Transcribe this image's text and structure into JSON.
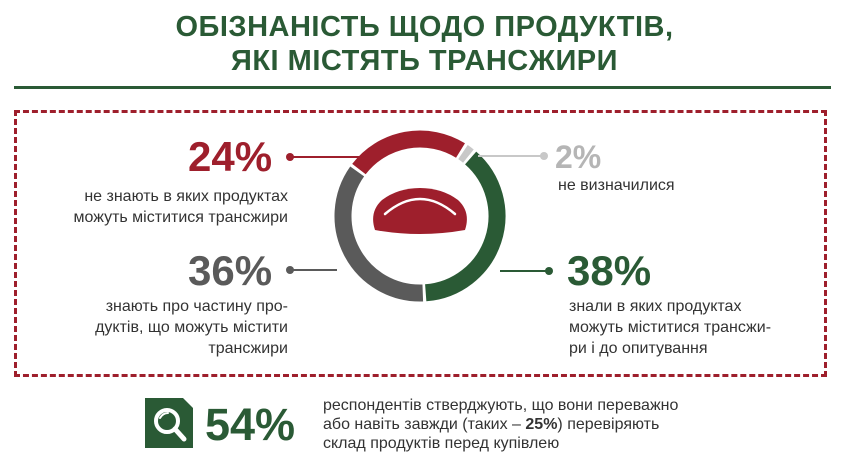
{
  "title": {
    "line1": "ОБІЗНАНІСТЬ ЩОДО ПРОДУКТІВ,",
    "line2": "ЯКІ МІСТЯТЬ ТРАНСЖИРИ"
  },
  "colors": {
    "green": "#2a5a35",
    "red": "#9e1f2c",
    "gray": "#5a5a5a",
    "lightgray": "#c8c8c8"
  },
  "chart_data": {
    "type": "pie",
    "variant": "donut",
    "slices": [
      {
        "label": "не знають в яких продуктах можуть міститися трансжири",
        "value": 24,
        "display": "24%",
        "color": "#9e1f2c"
      },
      {
        "label": "не визначилися",
        "value": 2,
        "display": "2%",
        "color": "#c8c8c8"
      },
      {
        "label": "знали в яких продуктах можуть міститися трансжири і до опитування",
        "value": 38,
        "display": "38%",
        "color": "#2a5a35"
      },
      {
        "label": "знають про частину продуктів, що можуть містити трансжири",
        "value": 36,
        "display": "36%",
        "color": "#5a5a5a"
      }
    ]
  },
  "labels": {
    "s24": {
      "pct": "24%",
      "line1": "не знають в яких продуктах",
      "line2": "можуть міститися трансжири"
    },
    "s2": {
      "pct": "2%",
      "line1": "не визначилися"
    },
    "s36": {
      "pct": "36%",
      "line1": "знають про частину про-",
      "line2": "дуктів, що можуть містити",
      "line3": "трансжири"
    },
    "s38": {
      "pct": "38%",
      "line1": "знали в яких продуктах",
      "line2": "можуть міститися трансжи-",
      "line3": "ри і до опитування"
    }
  },
  "bottom": {
    "big": "54%",
    "line1": "респондентів стверджують, що вони переважно",
    "line2_a": "або навіть завжди (таких – ",
    "line2_b": "25%",
    "line2_c": ") перевіряють",
    "line3": "склад продуктів перед купівлею",
    "icon": "magnifier-icon"
  },
  "center_icon": "dumpling-icon"
}
